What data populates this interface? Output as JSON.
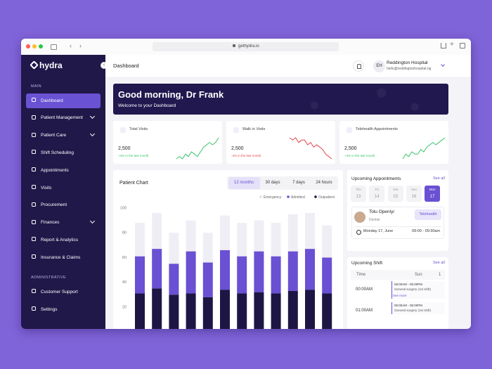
{
  "browser": {
    "url": "gethydra.io"
  },
  "sidebar": {
    "logo": "hydra",
    "main_label": "MAIN",
    "main_items": [
      "Dashboard",
      "Patient Management",
      "Patient Care",
      "Shift Scheduling",
      "Appointments",
      "Visits",
      "Procurement",
      "Finances",
      "Report & Analytics",
      "Insurance & Claims"
    ],
    "admin_label": "ADMINISTRATIVE",
    "admin_items": [
      "Customer Support",
      "Settings"
    ]
  },
  "header": {
    "title": "Dashboard",
    "avatar": "EH",
    "name": "Reddington Hospital",
    "email": "hello@reddingtonhospital.ng"
  },
  "banner": {
    "greeting": "Good morning, Dr Frank",
    "subtitle": "Welcome to your Dashboard"
  },
  "stats": [
    {
      "title": "Total Visits",
      "value": "2,500",
      "change": "+4% in the last month",
      "color": "#3cc46a",
      "trend": [
        2,
        3,
        2,
        4,
        3,
        5,
        4,
        3,
        5,
        7,
        8,
        9,
        8,
        9,
        11
      ]
    },
    {
      "title": "Walk in Visits",
      "value": "2,500",
      "change": "-4% in the last month",
      "color": "#e5484d",
      "trend": [
        10,
        9,
        10,
        8,
        9,
        9,
        7,
        8,
        6,
        7,
        6,
        5,
        3,
        2,
        1
      ]
    },
    {
      "title": "Telehealth Appointments",
      "value": "2,500",
      "change": "+4% in the last month",
      "color": "#3cc46a",
      "trend": [
        2,
        4,
        3,
        5,
        4,
        4,
        6,
        5,
        7,
        8,
        9,
        8,
        9,
        10,
        11
      ]
    }
  ],
  "chart_data": {
    "type": "bar",
    "stacked": true,
    "title": "Patient Chart",
    "tabs": [
      "12 months",
      "30 days",
      "7 days",
      "24 hours"
    ],
    "categories": [
      null,
      null,
      null,
      null,
      null,
      null,
      null,
      null,
      null,
      null,
      null,
      null
    ],
    "series": [
      {
        "name": "Emergency",
        "color": "#efeef5",
        "values": [
          27,
          29,
          25,
          25,
          24,
          28,
          27,
          25,
          27,
          30,
          29,
          26
        ]
      },
      {
        "name": "Admitted",
        "color": "#6a50d3",
        "values": [
          30,
          32,
          25,
          34,
          28,
          32,
          30,
          33,
          30,
          32,
          33,
          29
        ]
      },
      {
        "name": "Outpatient",
        "color": "#1d1645",
        "values": [
          31,
          35,
          30,
          31,
          28,
          34,
          31,
          32,
          31,
          33,
          34,
          31
        ]
      }
    ],
    "ylim": [
      0,
      100
    ],
    "yticks": [
      20,
      40,
      60,
      80,
      100
    ]
  },
  "appointments": {
    "title": "Upcoming Appointments",
    "see_all": "See all",
    "days": [
      {
        "day": "Thu",
        "date": 13
      },
      {
        "day": "Fri",
        "date": 14
      },
      {
        "day": "Sat",
        "date": 15
      },
      {
        "day": "Sun",
        "date": 16
      },
      {
        "day": "Mon",
        "date": 17
      }
    ],
    "patient": "Tolu Openiyi",
    "specialty": "Dentist",
    "mode": "Telehealth",
    "date": "Monday 17, June",
    "time": "09:00 - 09:30am"
  },
  "shifts": {
    "title": "Upcoming Shift",
    "see_all": "See all",
    "col_time": "Time",
    "col_day": "Sun",
    "col_num": "1",
    "rows": [
      {
        "time": "00:00AM",
        "slot": "06:00AM - 05:00PM",
        "desc": "General surgery (1st shift)",
        "more": "See more"
      },
      {
        "time": "01:00AM",
        "slot": "06:00AM - 05:00PM",
        "desc": "General surgery (1st shift)"
      }
    ]
  }
}
